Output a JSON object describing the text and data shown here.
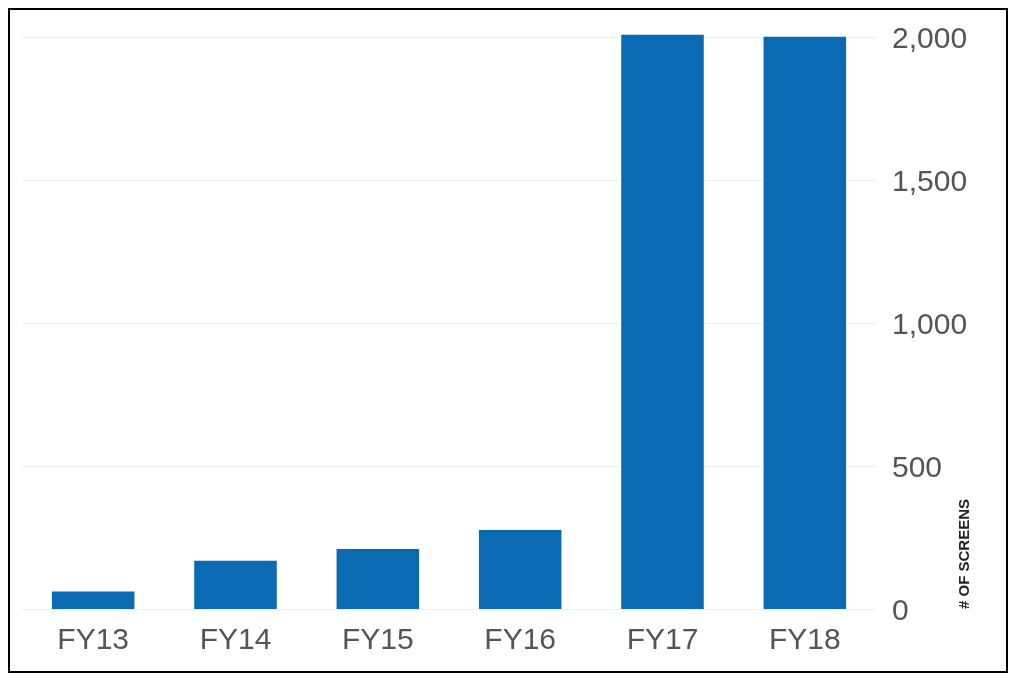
{
  "chart_data": {
    "type": "bar",
    "ylabel": "# OF SCREENS",
    "categories": [
      "FY13",
      "FY14",
      "FY15",
      "FY16",
      "FY17",
      "FY18"
    ],
    "values": [
      61,
      169,
      210,
      277,
      2010,
      2003
    ],
    "color": "#0a6ab4",
    "ylim": [
      0,
      2020
    ],
    "yticks": [
      0,
      500,
      {
        "value": 1000,
        "label": "1,000"
      },
      {
        "value": 1500,
        "label": "1,500"
      },
      {
        "value": 2000,
        "label": "2,000"
      }
    ],
    "grid": "y"
  }
}
